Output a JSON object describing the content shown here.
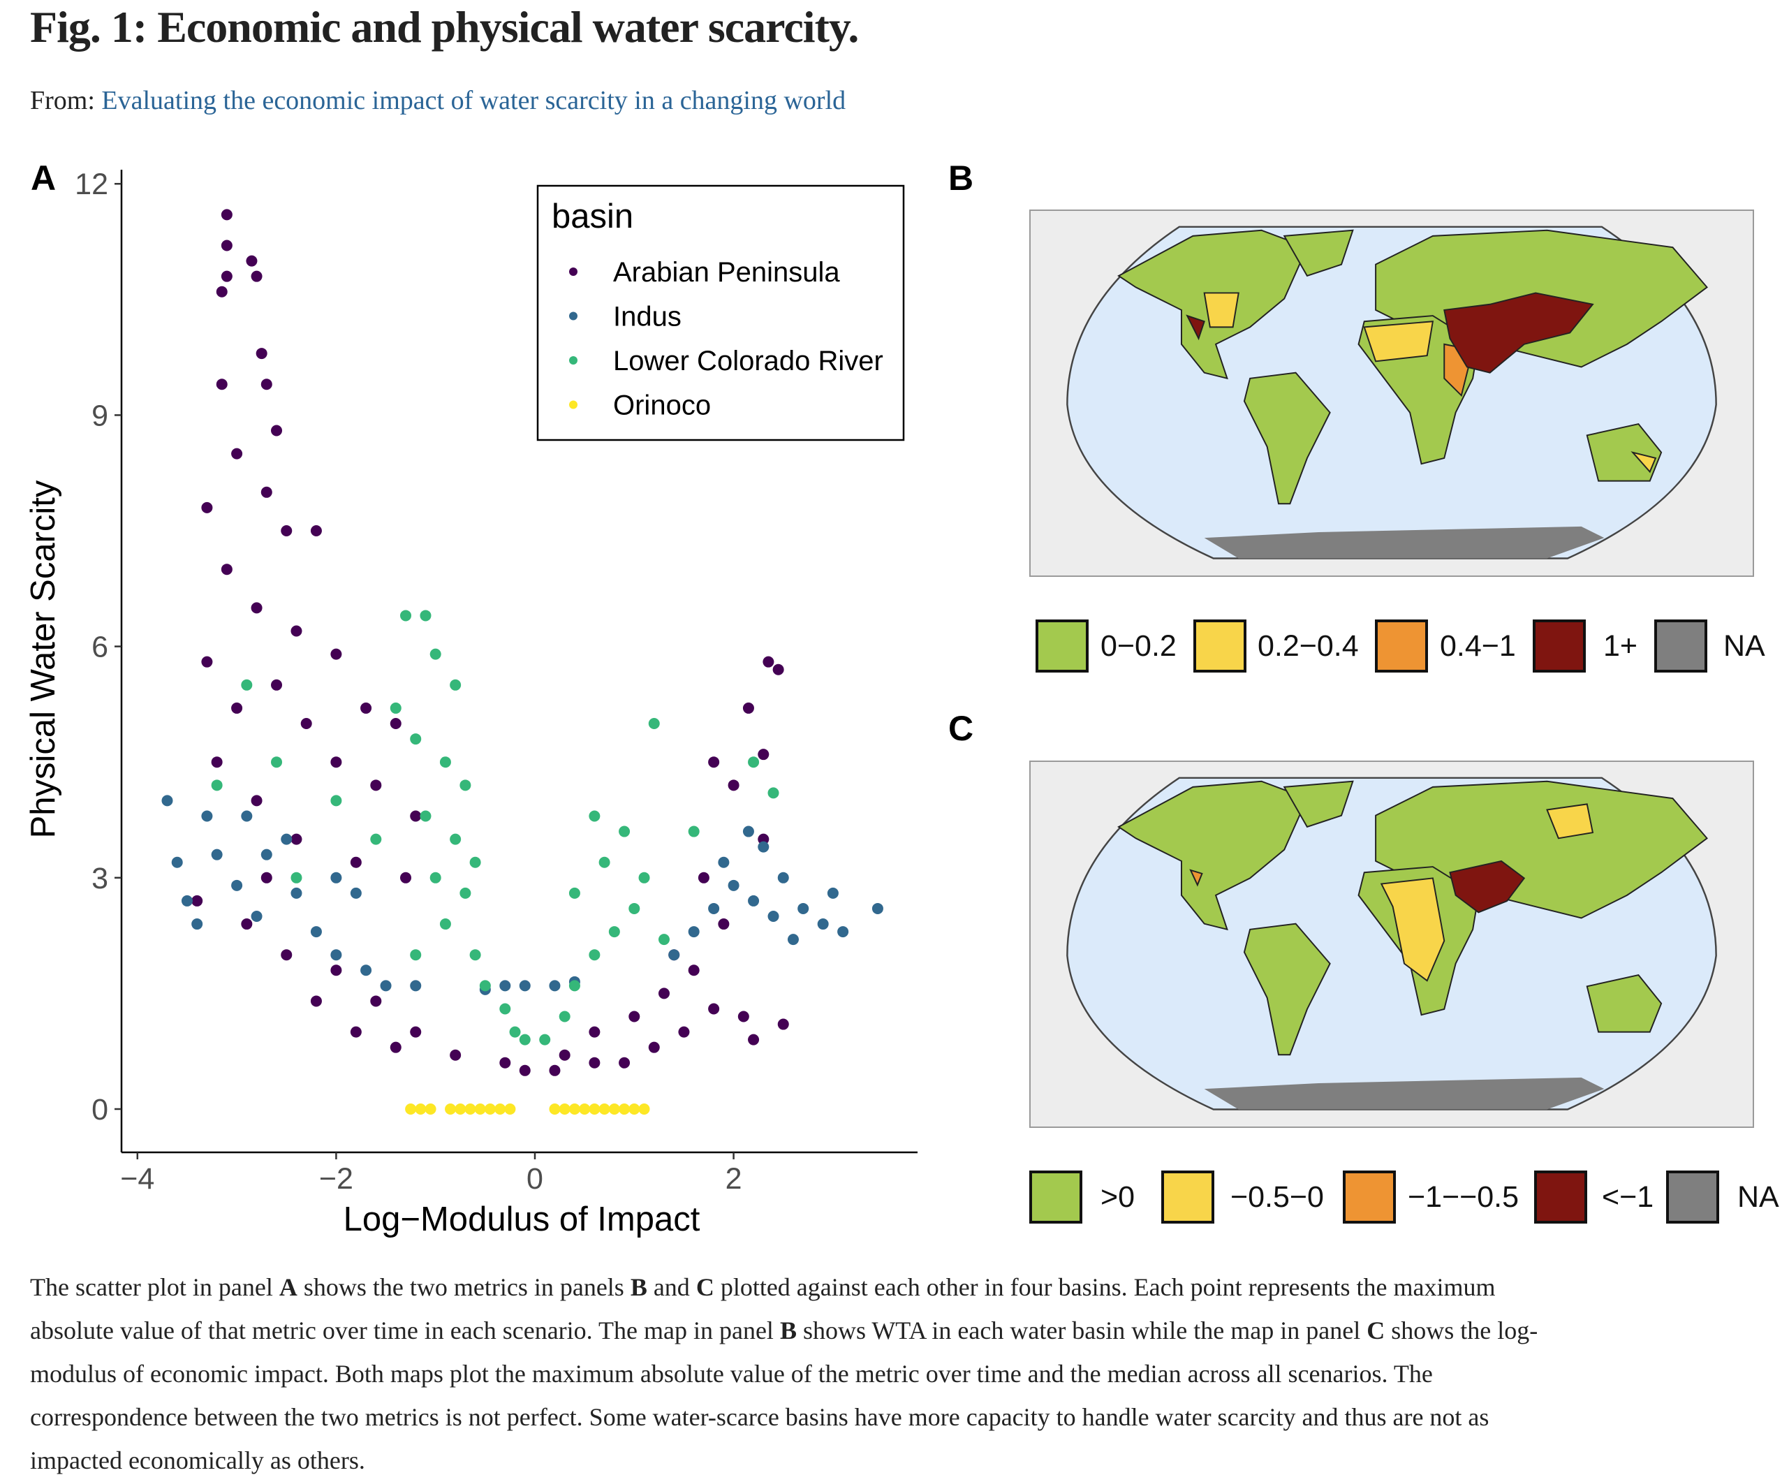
{
  "header": {
    "title": "Fig. 1: Economic and physical water scarcity.",
    "from_label": "From:",
    "from_link": "Evaluating the economic impact of water scarcity in a changing world"
  },
  "panels": {
    "a": "A",
    "b": "B",
    "c": "C"
  },
  "chart_data": {
    "type": "scatter",
    "title": "",
    "xlabel": "Log−Modulus of Impact",
    "ylabel": "Physical Water Scarcity",
    "xlim": [
      -4.1,
      3.8
    ],
    "ylim": [
      -0.6,
      12.2
    ],
    "xticks": [
      -4,
      -2,
      0,
      2
    ],
    "xtick_labels": [
      "−4",
      "−2",
      "0",
      "2"
    ],
    "yticks": [
      0,
      3,
      6,
      9,
      12
    ],
    "ytick_labels": [
      "0",
      "3",
      "6",
      "9",
      "12"
    ],
    "grid": false,
    "legend": {
      "title": "basin",
      "placement": "top-right"
    },
    "series": [
      {
        "name": "Arabian Peninsula",
        "color": "#440154",
        "points": [
          [
            -3.1,
            11.6
          ],
          [
            -3.1,
            11.2
          ],
          [
            -2.85,
            11
          ],
          [
            -3.1,
            10.8
          ],
          [
            -2.8,
            10.8
          ],
          [
            -3.15,
            10.6
          ],
          [
            -2.75,
            9.8
          ],
          [
            -3.15,
            9.4
          ],
          [
            -2.7,
            9.4
          ],
          [
            -2.6,
            8.8
          ],
          [
            -3,
            8.5
          ],
          [
            -2.7,
            8
          ],
          [
            -3.3,
            7.8
          ],
          [
            -2.5,
            7.5
          ],
          [
            -3.1,
            7
          ],
          [
            -2.2,
            7.5
          ],
          [
            -2.8,
            6.5
          ],
          [
            -2.4,
            6.2
          ],
          [
            -3.3,
            5.8
          ],
          [
            -2,
            5.9
          ],
          [
            -2.6,
            5.5
          ],
          [
            -3.0,
            5.2
          ],
          [
            -1.7,
            5.2
          ],
          [
            -2.3,
            5
          ],
          [
            -1.4,
            5
          ],
          [
            -3.2,
            4.5
          ],
          [
            -2,
            4.5
          ],
          [
            -1.6,
            4.2
          ],
          [
            -2.8,
            4
          ],
          [
            -1.2,
            3.8
          ],
          [
            -2.4,
            3.5
          ],
          [
            -1.8,
            3.2
          ],
          [
            -1.3,
            3
          ],
          [
            -2.9,
            2.4
          ],
          [
            -2.5,
            2
          ],
          [
            -2,
            1.8
          ],
          [
            -1.6,
            1.4
          ],
          [
            -1.2,
            1.0
          ],
          [
            -0.8,
            0.7
          ],
          [
            -0.3,
            0.6
          ],
          [
            0.2,
            0.5
          ],
          [
            0.6,
            0.6
          ],
          [
            0.9,
            0.6
          ],
          [
            1.2,
            0.8
          ],
          [
            1.5,
            1
          ],
          [
            1.8,
            1.3
          ],
          [
            2.1,
            1.2
          ],
          [
            1.6,
            1.8
          ],
          [
            1.9,
            2.4
          ],
          [
            2.2,
            0.9
          ],
          [
            1.4,
            2.0
          ],
          [
            1.7,
            3.0
          ],
          [
            2.3,
            3.5
          ],
          [
            2.0,
            4.2
          ],
          [
            2.3,
            4.6
          ],
          [
            1.8,
            4.5
          ],
          [
            2.15,
            5.2
          ],
          [
            2.35,
            5.8
          ],
          [
            2.45,
            5.7
          ],
          [
            -2.2,
            1.4
          ],
          [
            -1.8,
            1.0
          ],
          [
            -1.4,
            0.8
          ],
          [
            -3.4,
            2.7
          ],
          [
            -2.7,
            3.0
          ],
          [
            1.0,
            1.2
          ],
          [
            0.6,
            1.0
          ],
          [
            1.3,
            1.5
          ],
          [
            2.5,
            1.1
          ],
          [
            -0.1,
            0.5
          ],
          [
            0.3,
            0.7
          ]
        ]
      },
      {
        "name": "Indus",
        "color": "#31688E",
        "points": [
          [
            -3.7,
            4
          ],
          [
            -3.6,
            3.2
          ],
          [
            -3.5,
            2.7
          ],
          [
            -3.3,
            3.8
          ],
          [
            -3.2,
            3.3
          ],
          [
            -3,
            2.9
          ],
          [
            -2.8,
            2.5
          ],
          [
            -2.7,
            3.3
          ],
          [
            -2.5,
            3.5
          ],
          [
            -2.4,
            2.8
          ],
          [
            -2.2,
            2.3
          ],
          [
            -2,
            2.0
          ],
          [
            -1.8,
            2.8
          ],
          [
            -1.7,
            1.8
          ],
          [
            -1.5,
            1.6
          ],
          [
            -2.9,
            3.8
          ],
          [
            -3.4,
            2.4
          ],
          [
            -2.0,
            3.0
          ],
          [
            -0.3,
            1.6
          ],
          [
            -0.1,
            1.6
          ],
          [
            0.2,
            1.6
          ],
          [
            0.4,
            1.65
          ],
          [
            1.4,
            2.0
          ],
          [
            1.6,
            2.3
          ],
          [
            1.8,
            2.6
          ],
          [
            2,
            2.9
          ],
          [
            2.2,
            2.7
          ],
          [
            2.3,
            3.4
          ],
          [
            2.4,
            2.5
          ],
          [
            2.5,
            3.0
          ],
          [
            2.7,
            2.6
          ],
          [
            2.9,
            2.4
          ],
          [
            3.0,
            2.8
          ],
          [
            3.1,
            2.3
          ],
          [
            3.45,
            2.6
          ],
          [
            1.9,
            3.2
          ],
          [
            2.15,
            3.6
          ],
          [
            2.6,
            2.2
          ],
          [
            -1.2,
            1.6
          ],
          [
            -0.5,
            1.55
          ]
        ]
      },
      {
        "name": "Lower Colorado River",
        "color": "#35B779",
        "points": [
          [
            -3.2,
            4.2
          ],
          [
            -2.9,
            5.5
          ],
          [
            -2.6,
            4.5
          ],
          [
            -2.0,
            4.0
          ],
          [
            -1.3,
            6.4
          ],
          [
            -1.1,
            6.4
          ],
          [
            -1.4,
            5.2
          ],
          [
            -1.0,
            5.9
          ],
          [
            -0.8,
            5.5
          ],
          [
            -1.2,
            4.8
          ],
          [
            -0.9,
            4.5
          ],
          [
            -0.7,
            4.2
          ],
          [
            -1.1,
            3.8
          ],
          [
            -0.8,
            3.5
          ],
          [
            -1.0,
            3.0
          ],
          [
            -0.7,
            2.8
          ],
          [
            -0.9,
            2.4
          ],
          [
            -0.6,
            2.0
          ],
          [
            -0.5,
            1.6
          ],
          [
            -0.3,
            1.3
          ],
          [
            -0.2,
            1.0
          ],
          [
            -0.1,
            0.9
          ],
          [
            0.1,
            0.9
          ],
          [
            0.3,
            1.2
          ],
          [
            0.4,
            1.6
          ],
          [
            0.6,
            2.0
          ],
          [
            0.8,
            2.3
          ],
          [
            1.0,
            2.6
          ],
          [
            0.4,
            2.8
          ],
          [
            0.7,
            3.2
          ],
          [
            0.9,
            3.6
          ],
          [
            0.6,
            3.8
          ],
          [
            1.1,
            3.0
          ],
          [
            1.3,
            2.2
          ],
          [
            1.2,
            5.0
          ],
          [
            1.6,
            3.6
          ],
          [
            2.2,
            4.5
          ],
          [
            2.4,
            4.1
          ],
          [
            -2.4,
            3.0
          ],
          [
            -1.6,
            3.5
          ],
          [
            -0.6,
            3.2
          ],
          [
            -1.2,
            2.0
          ]
        ]
      },
      {
        "name": "Orinoco",
        "color": "#FDE725",
        "points": [
          [
            -1.25,
            0
          ],
          [
            -1.15,
            0
          ],
          [
            -1.05,
            0
          ],
          [
            -0.85,
            0
          ],
          [
            -0.75,
            0
          ],
          [
            -0.65,
            0
          ],
          [
            -0.55,
            0
          ],
          [
            -0.45,
            0
          ],
          [
            -0.35,
            0
          ],
          [
            -0.25,
            0
          ],
          [
            0.2,
            0
          ],
          [
            0.3,
            0
          ],
          [
            0.4,
            0
          ],
          [
            0.5,
            0
          ],
          [
            0.6,
            0
          ],
          [
            0.7,
            0
          ],
          [
            0.8,
            0
          ],
          [
            0.9,
            0
          ],
          [
            1.0,
            0
          ],
          [
            1.1,
            0
          ]
        ]
      }
    ]
  },
  "map_b": {
    "legend": [
      {
        "label": "0−0.2",
        "color": "#a3c94e"
      },
      {
        "label": "0.2−0.4",
        "color": "#f8d54a"
      },
      {
        "label": "0.4−1",
        "color": "#ee9433"
      },
      {
        "label": "1+",
        "color": "#7f1510"
      },
      {
        "label": "NA",
        "color": "#7f7f7f"
      }
    ]
  },
  "map_c": {
    "legend": [
      {
        "label": ">0",
        "color": "#a3c94e"
      },
      {
        "label": "−0.5−0",
        "color": "#f8d54a"
      },
      {
        "label": "−1−−0.5",
        "color": "#ee9433"
      },
      {
        "label": "<−1",
        "color": "#7f1510"
      },
      {
        "label": "NA",
        "color": "#7f7f7f"
      }
    ]
  },
  "caption": {
    "lines": [
      [
        {
          "t": "The scatter plot in panel "
        },
        {
          "t": "A",
          "b": true
        },
        {
          "t": " shows the two metrics in panels "
        },
        {
          "t": "B",
          "b": true
        },
        {
          "t": " and "
        },
        {
          "t": "C",
          "b": true
        },
        {
          "t": " plotted against each other in four basins. Each point represents the maximum"
        }
      ],
      [
        {
          "t": "absolute value of that metric over time in each scenario. The map in panel "
        },
        {
          "t": "B",
          "b": true
        },
        {
          "t": " shows WTA in each water basin while the map in panel "
        },
        {
          "t": "C",
          "b": true
        },
        {
          "t": " shows the log-"
        }
      ],
      [
        {
          "t": "modulus of economic impact. Both maps plot the maximum absolute value of the metric over time and the median across all scenarios. The"
        }
      ],
      [
        {
          "t": "correspondence between the two metrics is not perfect. Some water-scarce basins have more capacity to handle water scarcity and thus are not as"
        }
      ],
      [
        {
          "t": "impacted economically as others."
        }
      ]
    ]
  }
}
